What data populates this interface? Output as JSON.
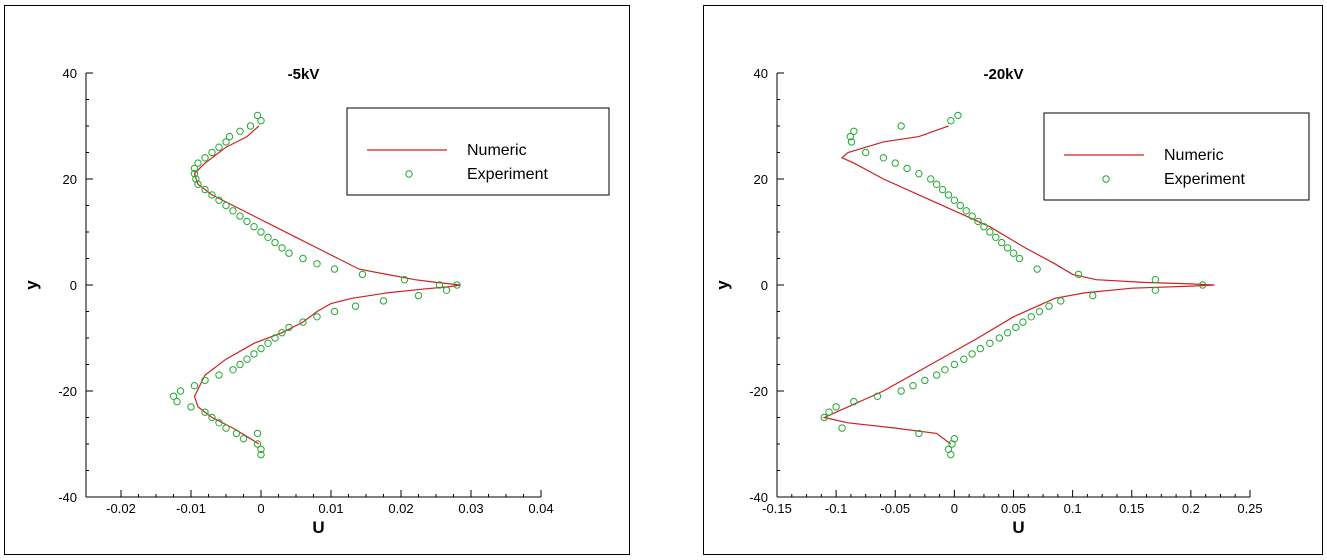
{
  "chart_data": [
    {
      "type": "line",
      "title": "-5kV",
      "xlabel": "U",
      "ylabel": "y",
      "xlim": [
        -0.025,
        0.04
      ],
      "ylim": [
        -40,
        40
      ],
      "xticks": [
        "-0.02",
        "-0.01",
        "0",
        "0.01",
        "0.02",
        "0.03",
        "0.04"
      ],
      "yticks": [
        "-40",
        "-20",
        "0",
        "20",
        "40"
      ],
      "legend_position": "top-right",
      "colors": {
        "numeric": "#cc2222",
        "experiment": "#22aa33"
      },
      "series": [
        {
          "name": "Numeric",
          "kind": "line",
          "x": [
            -0.0003,
            -0.002,
            -0.005,
            -0.008,
            -0.0095,
            -0.009,
            -0.007,
            -0.004,
            -0.001,
            0.002,
            0.005,
            0.008,
            0.011,
            0.014,
            0.018,
            0.022,
            0.025,
            0.027,
            0.0285,
            0.027,
            0.023,
            0.018,
            0.013,
            0.01,
            0.008,
            0.006,
            0.003,
            -0.001,
            -0.005,
            -0.008,
            -0.0095,
            -0.009,
            -0.007,
            -0.004,
            -0.0015,
            -0.0003
          ],
          "y": [
            30,
            28,
            26,
            23,
            21,
            19,
            17,
            15,
            13,
            11,
            9,
            7,
            5,
            3,
            2,
            1,
            0.5,
            0.2,
            0,
            -0.3,
            -0.8,
            -1.5,
            -2.5,
            -3.5,
            -5,
            -7,
            -9,
            -11,
            -14,
            -17,
            -21,
            -23,
            -25,
            -27,
            -29,
            -30
          ]
        },
        {
          "name": "Experiment",
          "kind": "scatter",
          "x": [
            -0.0005,
            0.0,
            -0.0015,
            -0.003,
            -0.0045,
            -0.005,
            -0.006,
            -0.007,
            -0.008,
            -0.009,
            -0.0095,
            -0.0095,
            -0.0093,
            -0.009,
            -0.008,
            -0.007,
            -0.006,
            -0.005,
            -0.004,
            -0.003,
            -0.002,
            -0.001,
            0.0,
            0.001,
            0.002,
            0.003,
            0.004,
            0.006,
            0.008,
            0.0105,
            0.0145,
            0.0205,
            0.0255,
            0.028,
            0.0265,
            0.0225,
            0.0175,
            0.0135,
            0.0105,
            0.008,
            0.006,
            0.004,
            0.003,
            0.002,
            0.001,
            0.0,
            -0.001,
            -0.002,
            -0.003,
            -0.004,
            -0.006,
            -0.008,
            -0.0095,
            -0.0115,
            -0.0125,
            -0.012,
            -0.01,
            -0.008,
            -0.007,
            -0.006,
            -0.005,
            -0.0035,
            -0.0025,
            -0.0005,
            0.0,
            0.0,
            -0.0005
          ],
          "y": [
            32,
            31,
            30,
            29,
            28,
            27,
            26,
            25,
            24,
            23,
            22,
            21,
            20,
            19,
            18,
            17,
            16,
            15,
            14,
            13,
            12,
            11,
            10,
            9,
            8,
            7,
            6,
            5,
            4,
            3,
            2,
            1,
            0,
            0,
            -1,
            -2,
            -3,
            -4,
            -5,
            -6,
            -7,
            -8,
            -9,
            -10,
            -11,
            -12,
            -13,
            -14,
            -15,
            -16,
            -17,
            -18,
            -19,
            -20,
            -21,
            -22,
            -23,
            -24,
            -25,
            -26,
            -27,
            -28,
            -29,
            -30,
            -31,
            -32,
            -28
          ]
        }
      ]
    },
    {
      "type": "line",
      "title": "-20kV",
      "xlabel": "U",
      "ylabel": "y",
      "xlim": [
        -0.15,
        0.25
      ],
      "ylim": [
        -40,
        40
      ],
      "xticks": [
        "-0.15",
        "-0.1",
        "-0.05",
        "0",
        "0.05",
        "0.1",
        "0.15",
        "0.2",
        "0.25"
      ],
      "yticks": [
        "-40",
        "-20",
        "0",
        "20",
        "40"
      ],
      "legend_position": "top-right",
      "colors": {
        "numeric": "#cc2222",
        "experiment": "#22aa33"
      },
      "series": [
        {
          "name": "Numeric",
          "kind": "line",
          "x": [
            -0.005,
            -0.03,
            -0.06,
            -0.09,
            -0.095,
            -0.085,
            -0.06,
            -0.03,
            0.0,
            0.03,
            0.06,
            0.085,
            0.1,
            0.12,
            0.16,
            0.2,
            0.22,
            0.2,
            0.15,
            0.11,
            0.085,
            0.07,
            0.05,
            0.02,
            -0.02,
            -0.06,
            -0.1,
            -0.11,
            -0.09,
            -0.05,
            -0.015,
            -0.003
          ],
          "y": [
            30,
            28,
            27,
            25,
            24,
            23,
            20,
            17,
            14,
            11,
            7,
            4,
            2,
            1,
            0.5,
            0.2,
            0,
            -0.2,
            -0.6,
            -1.5,
            -2.5,
            -4,
            -6,
            -10,
            -15,
            -20,
            -24,
            -25,
            -26,
            -27,
            -28,
            -30
          ]
        },
        {
          "name": "Experiment",
          "kind": "scatter",
          "x": [
            0.003,
            -0.003,
            -0.045,
            -0.085,
            -0.088,
            -0.087,
            -0.075,
            -0.06,
            -0.05,
            -0.04,
            -0.03,
            -0.02,
            -0.015,
            -0.01,
            -0.005,
            0.0,
            0.005,
            0.01,
            0.015,
            0.02,
            0.025,
            0.03,
            0.035,
            0.04,
            0.045,
            0.05,
            0.055,
            0.07,
            0.105,
            0.17,
            0.21,
            0.17,
            0.117,
            0.09,
            0.08,
            0.072,
            0.065,
            0.058,
            0.052,
            0.045,
            0.038,
            0.03,
            0.022,
            0.015,
            0.008,
            0.0,
            -0.008,
            -0.015,
            -0.025,
            -0.035,
            -0.045,
            -0.065,
            -0.085,
            -0.1,
            -0.106,
            -0.11,
            -0.095,
            -0.03,
            0.0,
            -0.002,
            -0.005,
            -0.003
          ],
          "y": [
            32,
            31,
            30,
            29,
            28,
            27,
            25,
            24,
            23,
            22,
            21,
            20,
            19,
            18,
            17,
            16,
            15,
            14,
            13,
            12,
            11,
            10,
            9,
            8,
            7,
            6,
            5,
            3,
            2,
            1,
            0,
            -1,
            -2,
            -3,
            -4,
            -5,
            -6,
            -7,
            -8,
            -9,
            -10,
            -11,
            -12,
            -13,
            -14,
            -15,
            -16,
            -17,
            -18,
            -19,
            -20,
            -21,
            -22,
            -23,
            -24,
            -25,
            -27,
            -28,
            -29,
            -30,
            -31,
            -32
          ]
        }
      ]
    }
  ]
}
